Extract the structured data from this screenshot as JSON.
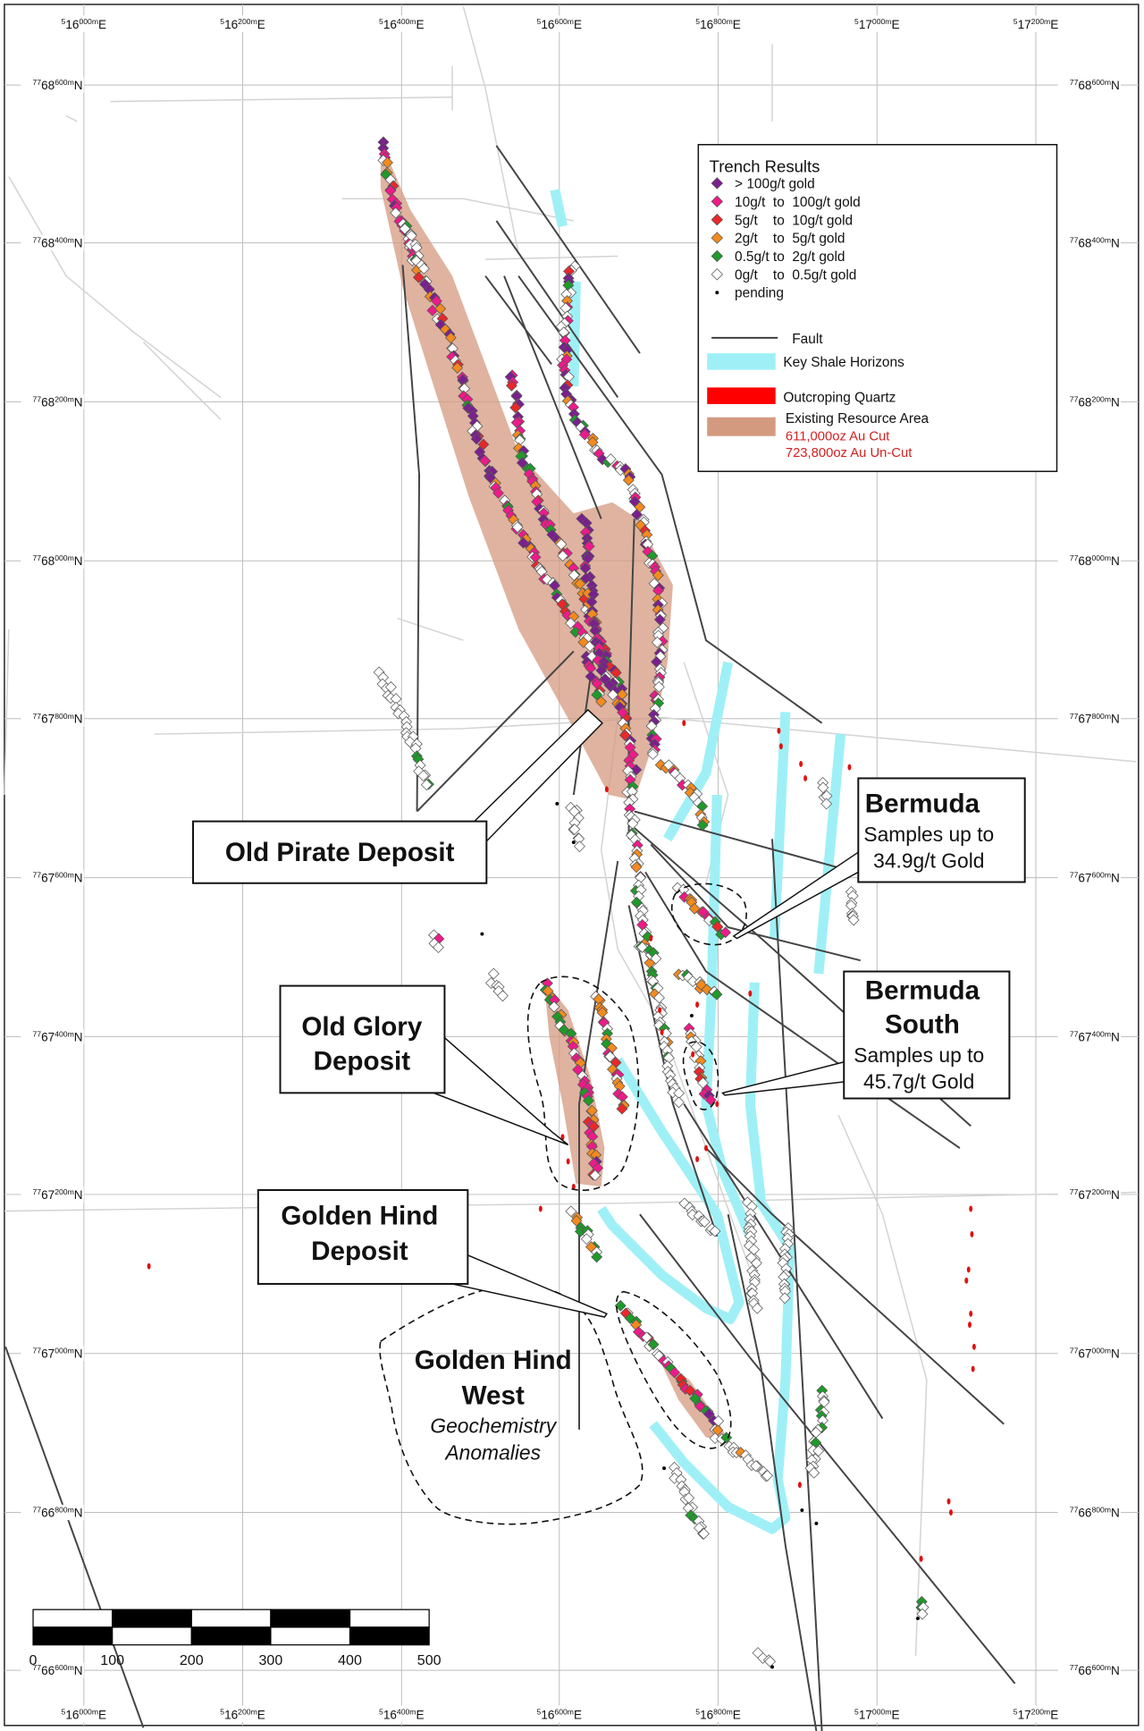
{
  "grid": {
    "eastings": [
      {
        "pre": "5",
        "main": "16",
        "sup": "000m",
        "suf": "E"
      },
      {
        "pre": "5",
        "main": "16",
        "sup": "200m",
        "suf": "E"
      },
      {
        "pre": "5",
        "main": "16",
        "sup": "400m",
        "suf": "E"
      },
      {
        "pre": "5",
        "main": "16",
        "sup": "600m",
        "suf": "E"
      },
      {
        "pre": "5",
        "main": "16",
        "sup": "800m",
        "suf": "E"
      },
      {
        "pre": "5",
        "main": "17",
        "sup": "000m",
        "suf": "E"
      },
      {
        "pre": "5",
        "main": "17",
        "sup": "200m",
        "suf": "E"
      }
    ],
    "northings": [
      {
        "pre": "77",
        "main": "68",
        "sup": "600m",
        "suf": "N"
      },
      {
        "pre": "77",
        "main": "68",
        "sup": "400m",
        "suf": "N"
      },
      {
        "pre": "77",
        "main": "68",
        "sup": "200m",
        "suf": "N"
      },
      {
        "pre": "77",
        "main": "68",
        "sup": "000m",
        "suf": "N"
      },
      {
        "pre": "77",
        "main": "67",
        "sup": "800m",
        "suf": "N"
      },
      {
        "pre": "77",
        "main": "67",
        "sup": "600m",
        "suf": "N"
      },
      {
        "pre": "77",
        "main": "67",
        "sup": "400m",
        "suf": "N"
      },
      {
        "pre": "77",
        "main": "67",
        "sup": "200m",
        "suf": "N"
      },
      {
        "pre": "77",
        "main": "67",
        "sup": "000m",
        "suf": "N"
      },
      {
        "pre": "77",
        "main": "66",
        "sup": "800m",
        "suf": "N"
      },
      {
        "pre": "77",
        "main": "66",
        "sup": "600m",
        "suf": "N"
      }
    ]
  },
  "legend": {
    "title": "Trench Results",
    "grades": [
      {
        "label": "> 100g/t gold",
        "color": "#7b1f8f"
      },
      {
        "label": "10g/t  to  100g/t gold",
        "color": "#ee1a8a"
      },
      {
        "label": "5g/t    to  10g/t gold",
        "color": "#e8282a"
      },
      {
        "label": "2g/t    to  5g/t gold",
        "color": "#f38a1e"
      },
      {
        "label": "0.5g/t to  2g/t gold",
        "color": "#1f9a2a"
      },
      {
        "label": "0g/t    to  0.5g/t gold",
        "color": "#ffffff"
      },
      {
        "label": "pending",
        "color": "#000000"
      }
    ],
    "fault": "Fault",
    "shale": "Key Shale Horizons",
    "quartz": "Outcroping Quartz",
    "resource": "Existing Resource Area",
    "resource_notes": [
      "611,000oz Au Cut",
      "723,800oz Au Un-Cut"
    ]
  },
  "callouts": [
    {
      "title": [
        "Old Pirate Deposit"
      ],
      "note": []
    },
    {
      "title": [
        "Bermuda"
      ],
      "note": [
        "Samples up to",
        "34.9g/t Gold"
      ]
    },
    {
      "title": [
        "Bermuda",
        "South"
      ],
      "note": [
        "Samples up to",
        "45.7g/t Gold"
      ]
    },
    {
      "title": [
        "Old Glory",
        "Deposit"
      ],
      "note": []
    },
    {
      "title": [
        "Golden Hind",
        "Deposit"
      ],
      "note": []
    },
    {
      "title": [
        "Golden Hind",
        "West"
      ],
      "note": [
        "Geochemistry",
        "Anomalies"
      ]
    }
  ],
  "scale_bar": {
    "labels": [
      "0",
      "100",
      "200",
      "300",
      "400",
      "500"
    ]
  }
}
